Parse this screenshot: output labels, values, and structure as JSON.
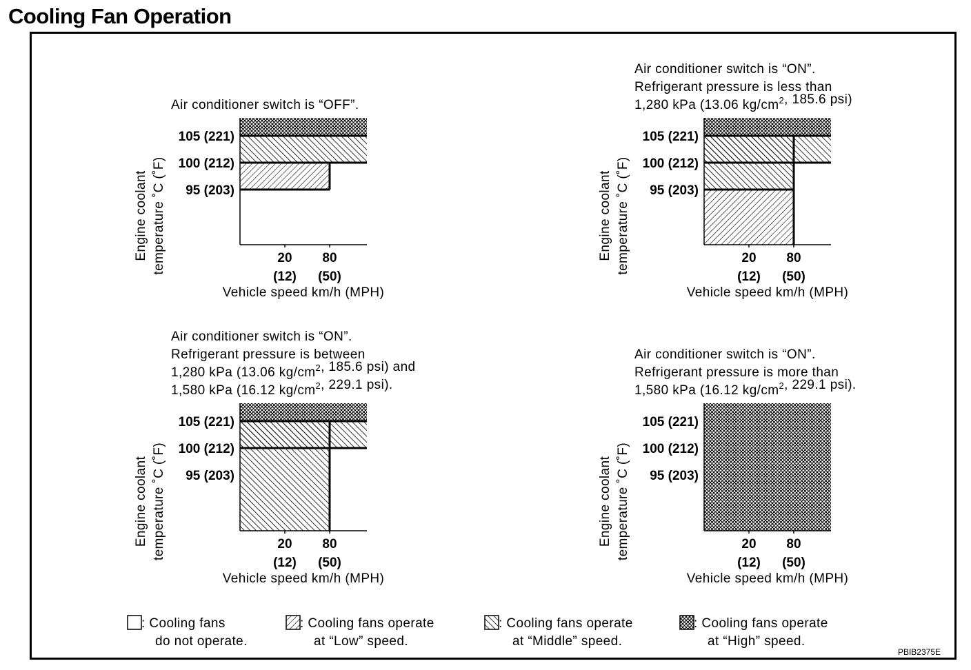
{
  "title": "Cooling Fan Operation",
  "figure_code": "PBIB2375E",
  "axis": {
    "y_label_line1": "Engine coolant",
    "y_label_line2": "temperature ˚C (˚F)",
    "y_ticks": [
      "105 (221)",
      "100 (212)",
      "95 (203)"
    ],
    "x_ticks_top": [
      "20",
      "80"
    ],
    "x_ticks_bottom": [
      "(12)",
      "(50)"
    ],
    "x_label": "Vehicle speed km/h (MPH)"
  },
  "panels": [
    {
      "caption": [
        "Air conditioner switch is “OFF”."
      ],
      "regions": [
        {
          "fan": "low",
          "temp_from": 95,
          "temp_to": 100,
          "speed_max": 80
        },
        {
          "fan": "middle",
          "temp_from": 100,
          "temp_to": 105,
          "speed_max": "max"
        },
        {
          "fan": "high",
          "temp_from": 105,
          "temp_to": "max",
          "speed_max": "max"
        }
      ]
    },
    {
      "caption": [
        "Air conditioner switch is “ON”.",
        "Refrigerant pressure is less than",
        "1,280 kPa (13.06 kg/cm², 185.6 psi)"
      ],
      "regions": [
        {
          "fan": "low",
          "temp_from": "min",
          "temp_to": 95,
          "speed_max": 80
        },
        {
          "fan": "middle",
          "temp_from": 95,
          "temp_to": 105,
          "speed_max": 80
        },
        {
          "fan": "middle",
          "temp_from": 100,
          "temp_to": 105,
          "speed_max": "max"
        },
        {
          "fan": "high",
          "temp_from": 105,
          "temp_to": "max",
          "speed_max": "max"
        }
      ]
    },
    {
      "caption": [
        "Air conditioner switch is “ON”.",
        "Refrigerant pressure is between",
        "1,280 kPa (13.06 kg/cm², 185.6 psi) and",
        "1,580 kPa (16.12 kg/cm², 229.1 psi)."
      ],
      "regions": [
        {
          "fan": "middle",
          "temp_from": "min",
          "temp_to": 105,
          "speed_max": 80
        },
        {
          "fan": "middle",
          "temp_from": 100,
          "temp_to": 105,
          "speed_max": "max"
        },
        {
          "fan": "high",
          "temp_from": 105,
          "temp_to": "max",
          "speed_max": "max"
        }
      ]
    },
    {
      "caption": [
        "Air conditioner switch is “ON”.",
        "Refrigerant pressure is more than",
        "1,580 kPa (16.12 kg/cm², 229.1 psi)."
      ],
      "regions": [
        {
          "fan": "high",
          "temp_from": "min",
          "temp_to": "max",
          "speed_max": "max"
        }
      ]
    }
  ],
  "legend": [
    {
      "pattern": "none",
      "line1": ": Cooling fans",
      "line2": "do not operate."
    },
    {
      "pattern": "low",
      "line1": ": Cooling fans operate",
      "line2": "at “Low” speed."
    },
    {
      "pattern": "middle",
      "line1": ": Cooling fans operate",
      "line2": "at “Middle” speed."
    },
    {
      "pattern": "high",
      "line1": ": Cooling fans operate",
      "line2": "at “High” speed."
    }
  ]
}
